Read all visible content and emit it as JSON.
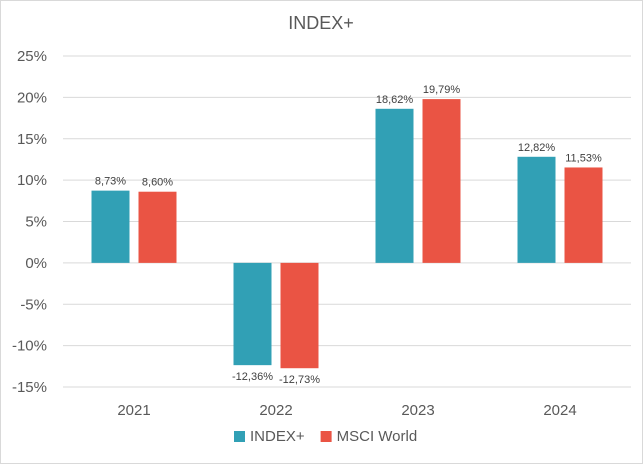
{
  "chart_data": {
    "type": "bar",
    "title": "INDEX+",
    "xlabel": "",
    "ylabel": "",
    "categories": [
      "2021",
      "2022",
      "2023",
      "2024"
    ],
    "series": [
      {
        "name": "INDEX+",
        "values": [
          8.73,
          -12.36,
          18.62,
          12.82
        ],
        "labels": [
          "8,73%",
          "-12,36%",
          "18,62%",
          "12,82%"
        ],
        "color": "#31A0B5"
      },
      {
        "name": "MSCI World",
        "values": [
          8.6,
          -12.73,
          19.79,
          11.53
        ],
        "labels": [
          "8,60%",
          "-12,73%",
          "19,79%",
          "11,53%"
        ],
        "color": "#EA5444"
      }
    ],
    "ylim": [
      -15,
      25
    ],
    "yticks": [
      25,
      20,
      15,
      10,
      5,
      0,
      -5,
      -10,
      -15
    ],
    "ytick_labels": [
      "25%",
      "20%",
      "15%",
      "10%",
      "5%",
      "0%",
      "-5%",
      "-10%",
      "-15%"
    ],
    "grid": true,
    "legend_position": "bottom"
  }
}
